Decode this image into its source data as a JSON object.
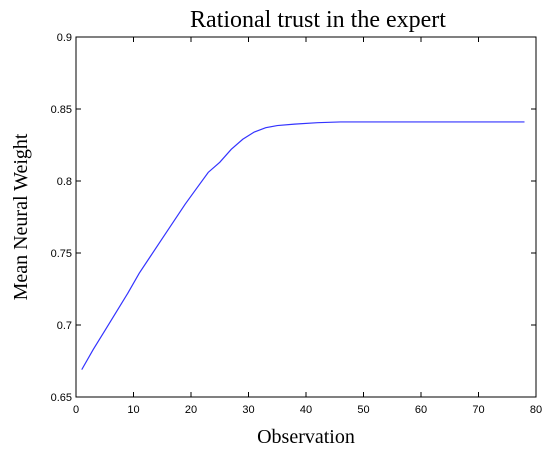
{
  "chart_data": {
    "type": "line",
    "title": "Rational trust in the expert",
    "xlabel": "Observation",
    "ylabel": "Mean Neural Weight",
    "xlim": [
      0,
      80
    ],
    "ylim": [
      0.65,
      0.9
    ],
    "xticks": [
      0,
      10,
      20,
      30,
      40,
      50,
      60,
      70,
      80
    ],
    "yticks": [
      0.65,
      0.7,
      0.75,
      0.8,
      0.85,
      0.9
    ],
    "xtick_labels": [
      "0",
      "10",
      "20",
      "30",
      "40",
      "50",
      "60",
      "70",
      "80"
    ],
    "ytick_labels": [
      "0.65",
      "0.7",
      "0.75",
      "0.8",
      "0.85",
      "0.9"
    ],
    "grid": false,
    "series": [
      {
        "color": "#3333ff",
        "x": [
          1,
          3,
          5,
          7,
          9,
          11,
          13,
          15,
          17,
          19,
          21,
          23,
          25,
          27,
          29,
          31,
          33,
          35,
          38,
          42,
          46,
          50,
          55,
          60,
          65,
          70,
          75,
          78
        ],
        "y": [
          0.669,
          0.683,
          0.696,
          0.709,
          0.722,
          0.736,
          0.748,
          0.76,
          0.772,
          0.784,
          0.795,
          0.806,
          0.813,
          0.822,
          0.829,
          0.834,
          0.837,
          0.8385,
          0.8395,
          0.8405,
          0.841,
          0.841,
          0.841,
          0.841,
          0.841,
          0.841,
          0.841,
          0.841
        ]
      }
    ]
  }
}
